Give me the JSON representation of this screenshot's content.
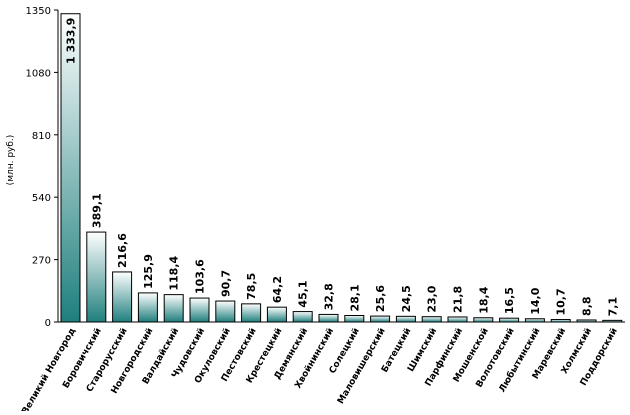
{
  "colors": {
    "bar_top": "#ffffff",
    "bar_bottom": "#1e7f7d",
    "bar_stroke": "#000000",
    "axis": "#000000",
    "text": "#000000"
  },
  "chart_data": {
    "type": "bar",
    "title": "",
    "xlabel": "",
    "ylabel": "(млн. руб.)",
    "ylim": [
      0,
      1350
    ],
    "yticks": [
      0,
      270,
      540,
      810,
      1080,
      1350
    ],
    "grid": false,
    "legend": "none",
    "categories": [
      "Великий Новгород",
      "Боровичский",
      "Старорусский",
      "Новгородский",
      "Валдайский",
      "Чудовский",
      "Окуловский",
      "Пестовский",
      "Крестецкий",
      "Демянский",
      "Хвойнинский",
      "Солецкий",
      "Маловишерский",
      "Батецкий",
      "Шимский",
      "Парфинский",
      "Мошенской",
      "Волотовский",
      "Любытинский",
      "Маревский",
      "Холмский",
      "Поддорский"
    ],
    "values": [
      1333.9,
      389.1,
      216.6,
      125.9,
      118.4,
      103.6,
      90.7,
      78.5,
      64.2,
      45.1,
      32.8,
      28.1,
      25.6,
      24.5,
      23.0,
      21.8,
      18.4,
      16.5,
      14.0,
      10.7,
      8.8,
      7.1
    ],
    "value_labels": [
      "1 333,9",
      "389,1",
      "216,6",
      "125,9",
      "118,4",
      "103,6",
      "90,7",
      "78,5",
      "64,2",
      "45,1",
      "32,8",
      "28,1",
      "25,6",
      "24,5",
      "23,0",
      "21,8",
      "18,4",
      "16,5",
      "14,0",
      "10,7",
      "8,8",
      "7,1"
    ]
  }
}
